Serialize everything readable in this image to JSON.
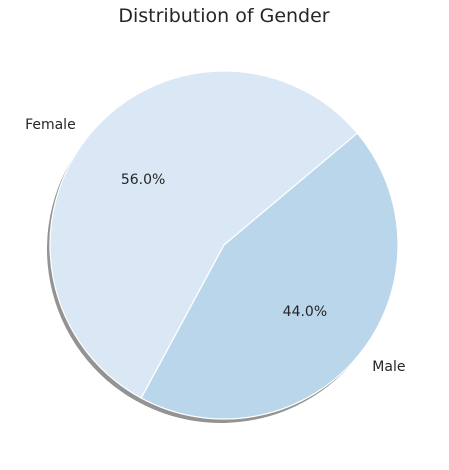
{
  "chart_data": {
    "type": "pie",
    "title": "Distribution of Gender",
    "categories": [
      "Female",
      "Male"
    ],
    "values": [
      56.0,
      44.0
    ],
    "percent_labels": [
      "56.0%",
      "44.0%"
    ],
    "colors": [
      "#dae8f5",
      "#bad6eb"
    ],
    "shadow": true,
    "legend": "none"
  }
}
